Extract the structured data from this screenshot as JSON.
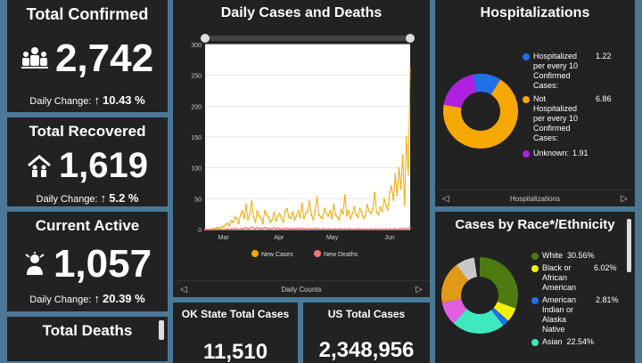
{
  "confirmed": {
    "title": "Total Confirmed",
    "value": "2,742",
    "change_label": "Daily Change:",
    "arrow": "↑",
    "change": "10.43 %"
  },
  "recovered": {
    "title": "Total Recovered",
    "value": "1,619",
    "change_label": "Daily Change:",
    "arrow": "↑",
    "change": "5.2 %"
  },
  "active": {
    "title": "Current Active",
    "value": "1,057",
    "change_label": "Daily Change:",
    "arrow": "↑",
    "change": "20.39 %"
  },
  "deaths": {
    "title": "Total Deaths"
  },
  "daily": {
    "title": "Daily Cases and Deaths",
    "footer": "Daily Counts",
    "prev": "◁",
    "next": "▷"
  },
  "hosp": {
    "title": "Hospitalizations",
    "footer": "Hospitalizations",
    "prev": "◁",
    "next": "▷",
    "items": [
      {
        "label": "Hospitalized per every 10 Confirmed Cases:",
        "value": "1.22",
        "color": "#1f6fe8"
      },
      {
        "label": "Not Hospitalized per every 10 Confirmed Cases:",
        "value": "6.86",
        "color": "#f5a800"
      },
      {
        "label": "Unknown:",
        "value": "1.91",
        "color": "#b020e0"
      }
    ]
  },
  "race": {
    "title": "Cases by Race*/Ethnicity",
    "items": [
      {
        "label": "White",
        "value": "30.56%",
        "color": "#4e7a12"
      },
      {
        "label": "Black or African American",
        "value": "6.02%",
        "color": "#f2f200"
      },
      {
        "label": "American Indian or Alaska Native",
        "value": "2.81%",
        "color": "#1f6fe8"
      },
      {
        "label": "Asian",
        "value": "22.54%",
        "color": "#3ee8c0"
      }
    ]
  },
  "ok": {
    "title": "OK State Total Cases",
    "value": "11,510"
  },
  "us": {
    "title": "US Total Cases",
    "value": "2,348,956"
  },
  "chart_data": {
    "type": "line",
    "title": "Daily Cases and Deaths",
    "xlabel": "Daily Counts",
    "ylabel": "",
    "xticks": [
      "Mar",
      "Apr",
      "May",
      "Jun"
    ],
    "yticks": [
      0,
      50,
      100,
      150,
      200,
      250,
      300
    ],
    "ylim": [
      0,
      300
    ],
    "series": [
      {
        "name": "New Cases",
        "color": "#f5a800",
        "values": [
          0,
          0,
          0,
          0,
          1,
          1,
          2,
          3,
          2,
          5,
          4,
          8,
          10,
          6,
          14,
          12,
          20,
          18,
          10,
          24,
          30,
          18,
          40,
          16,
          26,
          46,
          20,
          12,
          30,
          22,
          18,
          10,
          30,
          25,
          20,
          12,
          16,
          28,
          14,
          22,
          26,
          18,
          12,
          30,
          34,
          20,
          18,
          28,
          16,
          22,
          30,
          20,
          42,
          18,
          26,
          30,
          46,
          24,
          16,
          30,
          52,
          24,
          20,
          18,
          34,
          26,
          22,
          30,
          18,
          40,
          24,
          20,
          16,
          32,
          26,
          56,
          22,
          30,
          18,
          26,
          36,
          24,
          20,
          34,
          28,
          18,
          22,
          40,
          30,
          26,
          34,
          60,
          28,
          24,
          36,
          30,
          50,
          40,
          32,
          60,
          70,
          48,
          90,
          56,
          100,
          66,
          120,
          40,
          150,
          90,
          260
        ]
      },
      {
        "name": "New Deaths",
        "color": "#f07878",
        "values": [
          0,
          0,
          0,
          0,
          0,
          0,
          0,
          0,
          0,
          0,
          0,
          0,
          1,
          0,
          1,
          1,
          2,
          1,
          0,
          2,
          1,
          2,
          3,
          1,
          2,
          4,
          2,
          1,
          3,
          2,
          1,
          2,
          3,
          2,
          2,
          1,
          2,
          3,
          1,
          2,
          2,
          1,
          1,
          2,
          2,
          1,
          1,
          2,
          1,
          1,
          2,
          1,
          2,
          1,
          1,
          2,
          1,
          1,
          1,
          2,
          1,
          1,
          0,
          1,
          1,
          0,
          1,
          1,
          0,
          1,
          1,
          0,
          1,
          1,
          0,
          1,
          0,
          1,
          1,
          0,
          1,
          0,
          1,
          1,
          0,
          1,
          0,
          1,
          0,
          1,
          0,
          1,
          0,
          1,
          0,
          1,
          0,
          1,
          0,
          1,
          0,
          1,
          1,
          0,
          1,
          1,
          2,
          1,
          1,
          2,
          3
        ]
      }
    ]
  }
}
